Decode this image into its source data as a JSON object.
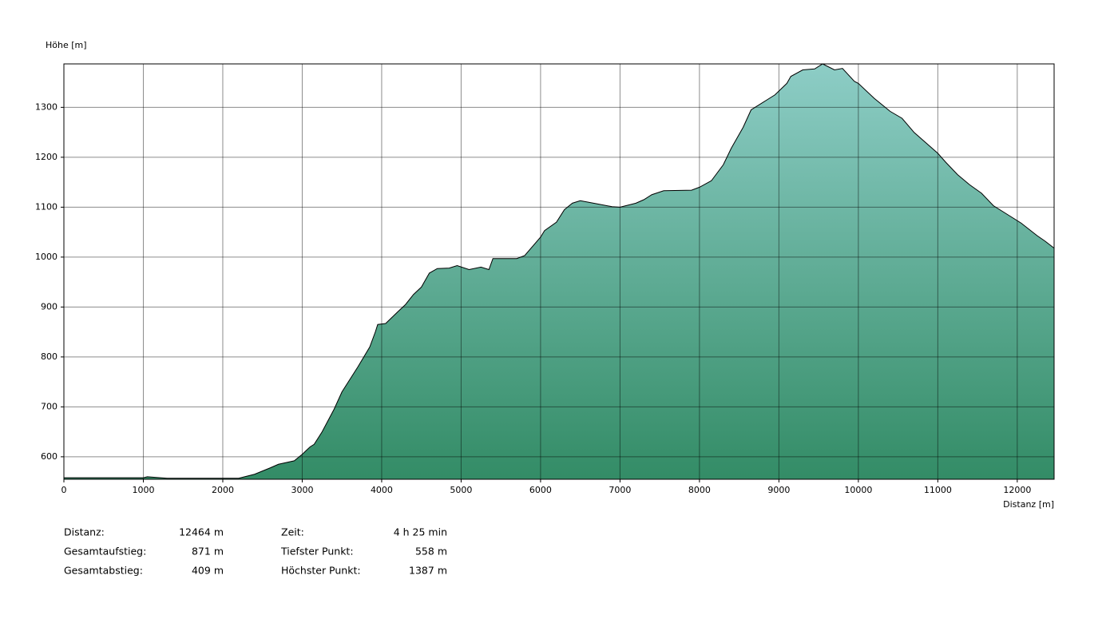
{
  "chart_data": {
    "type": "area",
    "y_label": "Höhe [m]",
    "x_label": "Distanz [m]",
    "x": [
      0,
      1000,
      1050,
      1300,
      2000,
      2200,
      2400,
      2600,
      2700,
      2900,
      3000,
      3100,
      3150,
      3250,
      3400,
      3500,
      3700,
      3850,
      3920,
      3950,
      4050,
      4200,
      4300,
      4400,
      4500,
      4600,
      4700,
      4850,
      4950,
      5100,
      5250,
      5350,
      5400,
      5700,
      5800,
      6000,
      6050,
      6200,
      6300,
      6400,
      6500,
      6700,
      6900,
      7000,
      7200,
      7300,
      7400,
      7550,
      7900,
      8000,
      8150,
      8300,
      8400,
      8550,
      8650,
      8850,
      8950,
      9100,
      9150,
      9300,
      9450,
      9550,
      9700,
      9800,
      9950,
      10000,
      10200,
      10400,
      10550,
      10700,
      11000,
      11100,
      11250,
      11400,
      11550,
      11700,
      11900,
      12050,
      12250,
      12350,
      12464
    ],
    "values": [
      558,
      558,
      560,
      557,
      557,
      557,
      565,
      578,
      585,
      592,
      605,
      620,
      625,
      650,
      695,
      730,
      780,
      820,
      850,
      865,
      867,
      890,
      905,
      925,
      940,
      968,
      977,
      978,
      983,
      975,
      980,
      975,
      997,
      997,
      1003,
      1040,
      1053,
      1070,
      1095,
      1108,
      1113,
      1107,
      1101,
      1100,
      1108,
      1115,
      1125,
      1133,
      1134,
      1140,
      1153,
      1185,
      1218,
      1260,
      1295,
      1315,
      1325,
      1348,
      1362,
      1375,
      1377,
      1387,
      1375,
      1378,
      1352,
      1348,
      1318,
      1292,
      1278,
      1250,
      1208,
      1190,
      1165,
      1145,
      1128,
      1103,
      1083,
      1068,
      1043,
      1032,
      1018
    ],
    "xlim": [
      0,
      12464
    ],
    "ylim": [
      555,
      1387
    ],
    "xticks": [
      0,
      1000,
      2000,
      3000,
      4000,
      5000,
      6000,
      7000,
      8000,
      9000,
      10000,
      11000,
      12000
    ],
    "yticks": [
      600,
      700,
      800,
      900,
      1000,
      1100,
      1200,
      1300
    ],
    "grid": true,
    "color_top": "#8dcdc6",
    "color_bottom": "#338c66",
    "line_color": "#000000"
  },
  "stats": [
    [
      {
        "label": "Distanz:",
        "value": "12464 m"
      },
      {
        "label": "Gesamtaufstieg:",
        "value": "871 m"
      },
      {
        "label": "Gesamtabstieg:",
        "value": "409 m"
      }
    ],
    [
      {
        "label": "Zeit:",
        "value": "4 h 25 min"
      },
      {
        "label": "Tiefster Punkt:",
        "value": "558 m"
      },
      {
        "label": "Höchster Punkt:",
        "value": "1387 m"
      }
    ]
  ]
}
